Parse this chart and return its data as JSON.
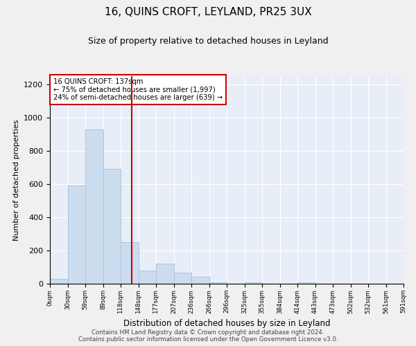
{
  "title": "16, QUINS CROFT, LEYLAND, PR25 3UX",
  "subtitle": "Size of property relative to detached houses in Leyland",
  "xlabel": "Distribution of detached houses by size in Leyland",
  "ylabel": "Number of detached properties",
  "bar_edges": [
    0,
    29.5,
    59,
    88.5,
    118,
    147.5,
    177,
    206.5,
    236,
    265.5,
    295,
    324.5,
    354,
    383.5,
    413,
    442.5,
    472,
    501.5,
    531,
    560.5,
    590
  ],
  "bar_heights": [
    30,
    590,
    930,
    690,
    250,
    78,
    120,
    65,
    40,
    10,
    0,
    10,
    0,
    0,
    10,
    0,
    0,
    0,
    0,
    0
  ],
  "bar_color": "#ccddf0",
  "bar_edgecolor": "#aac4e0",
  "property_size": 137,
  "redline_color": "#cc0000",
  "annotation_text": "16 QUINS CROFT: 137sqm\n← 75% of detached houses are smaller (1,997)\n24% of semi-detached houses are larger (639) →",
  "annotation_box_edgecolor": "#cc0000",
  "ylim": [
    0,
    1250
  ],
  "yticks": [
    0,
    200,
    400,
    600,
    800,
    1000,
    1200
  ],
  "xtick_labels": [
    "0sqm",
    "30sqm",
    "59sqm",
    "89sqm",
    "118sqm",
    "148sqm",
    "177sqm",
    "207sqm",
    "236sqm",
    "266sqm",
    "296sqm",
    "325sqm",
    "355sqm",
    "384sqm",
    "414sqm",
    "443sqm",
    "473sqm",
    "502sqm",
    "532sqm",
    "561sqm",
    "591sqm"
  ],
  "footer_line1": "Contains HM Land Registry data © Crown copyright and database right 2024.",
  "footer_line2": "Contains public sector information licensed under the Open Government Licence v3.0.",
  "bg_color": "#e8eef8",
  "fig_bg_color": "#f0f0f0"
}
